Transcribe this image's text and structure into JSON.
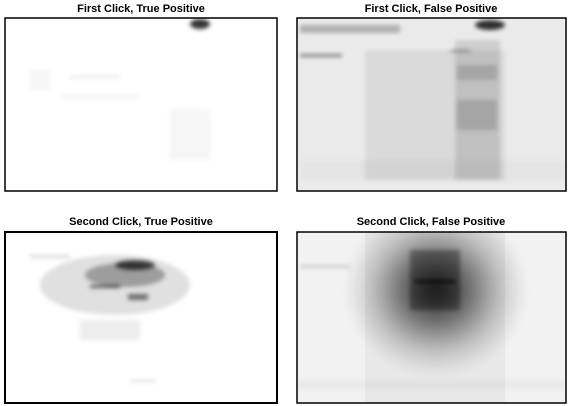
{
  "panels": [
    {
      "title": "First Click, True Positive"
    },
    {
      "title": "First Click, False Positive"
    },
    {
      "title": "Second Click, True Positive"
    },
    {
      "title": "Second Click, False Positive"
    }
  ]
}
